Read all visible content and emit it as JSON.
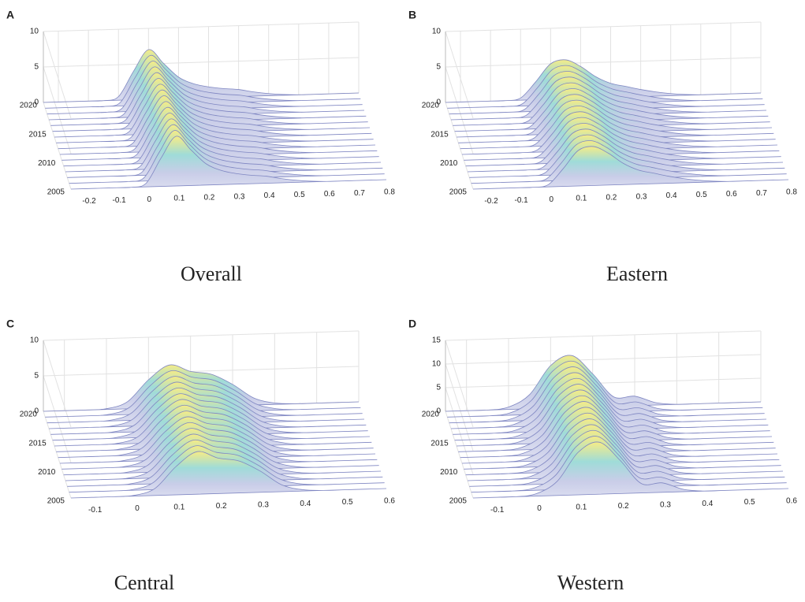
{
  "chart_data": [
    {
      "type": "surface",
      "panel": "A",
      "title": "Overall",
      "color": "#7f86c2",
      "x": [
        -0.2,
        -0.15,
        -0.1,
        -0.05,
        0,
        0.05,
        0.1,
        0.15,
        0.2,
        0.25,
        0.3,
        0.35,
        0.4,
        0.45,
        0.5,
        0.55,
        0.6,
        0.65,
        0.7,
        0.75,
        0.8
      ],
      "values": [
        0,
        0,
        0,
        0,
        0.5,
        4,
        7,
        5,
        3,
        2,
        1.5,
        1.2,
        1,
        0.6,
        0.3,
        0.1,
        0,
        0,
        0,
        0,
        0
      ],
      "xlim": [
        -0.25,
        0.8
      ],
      "xticks": [
        -0.2,
        -0.1,
        0,
        0.1,
        0.2,
        0.3,
        0.4,
        0.5,
        0.6,
        0.7,
        0.8
      ],
      "ylim": [
        2005,
        2020
      ],
      "yticks": [
        2005,
        2010,
        2015,
        2020
      ],
      "zlim": [
        0,
        10
      ],
      "zticks": [
        0,
        5,
        10
      ]
    },
    {
      "type": "surface",
      "panel": "B",
      "title": "Eastern",
      "color": "#7f86c2",
      "x": [
        -0.2,
        -0.15,
        -0.1,
        -0.05,
        0,
        0.05,
        0.1,
        0.15,
        0.2,
        0.25,
        0.3,
        0.35,
        0.4,
        0.45,
        0.5,
        0.55,
        0.6,
        0.65,
        0.7,
        0.75,
        0.8
      ],
      "values": [
        0,
        0,
        0,
        0,
        0.3,
        2.5,
        5,
        5.5,
        4.5,
        3,
        2,
        1.5,
        1,
        0.6,
        0.3,
        0.1,
        0,
        0,
        0,
        0,
        0
      ],
      "xlim": [
        -0.25,
        0.8
      ],
      "xticks": [
        -0.2,
        -0.1,
        0,
        0.1,
        0.2,
        0.3,
        0.4,
        0.5,
        0.6,
        0.7,
        0.8
      ],
      "ylim": [
        2005,
        2020
      ],
      "yticks": [
        2005,
        2010,
        2015,
        2020
      ],
      "zlim": [
        0,
        10
      ],
      "zticks": [
        0,
        5,
        10
      ]
    },
    {
      "type": "surface",
      "panel": "C",
      "title": "Central",
      "color": "#7f86c2",
      "x": [
        -0.1,
        -0.05,
        0,
        0.05,
        0.1,
        0.15,
        0.2,
        0.25,
        0.3,
        0.35,
        0.4,
        0.45,
        0.5,
        0.55,
        0.6
      ],
      "values": [
        0,
        0,
        0.1,
        1,
        4,
        6,
        5,
        4.5,
        3,
        1,
        0.2,
        0,
        0,
        0,
        0
      ],
      "xlim": [
        -0.15,
        0.6
      ],
      "xticks": [
        -0.1,
        0,
        0.1,
        0.2,
        0.3,
        0.4,
        0.5,
        0.6
      ],
      "ylim": [
        2005,
        2020
      ],
      "yticks": [
        2005,
        2010,
        2015,
        2020
      ],
      "zlim": [
        0,
        10
      ],
      "zticks": [
        0,
        5,
        10
      ]
    },
    {
      "type": "surface",
      "panel": "D",
      "title": "Western",
      "color": "#7f86c2",
      "x": [
        -0.1,
        -0.05,
        0,
        0.05,
        0.1,
        0.15,
        0.2,
        0.25,
        0.3,
        0.35,
        0.4,
        0.45,
        0.5,
        0.55,
        0.6
      ],
      "values": [
        0,
        0,
        0.5,
        3,
        9,
        11,
        7,
        2,
        2,
        0.5,
        0,
        0,
        0,
        0,
        0
      ],
      "xlim": [
        -0.15,
        0.6
      ],
      "xticks": [
        -0.1,
        0,
        0.1,
        0.2,
        0.3,
        0.4,
        0.5,
        0.6
      ],
      "ylim": [
        2005,
        2020
      ],
      "yticks": [
        2005,
        2010,
        2015,
        2020
      ],
      "zlim": [
        0,
        15
      ],
      "zticks": [
        0,
        5,
        10,
        15
      ]
    }
  ]
}
